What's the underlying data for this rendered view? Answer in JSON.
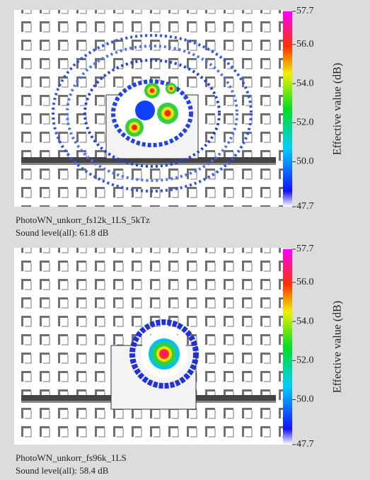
{
  "panels": [
    {
      "colorbar": {
        "label": "Effective value (dB)",
        "lim": [
          47.7,
          57.7
        ],
        "ticks": [
          57.7,
          {
            "value": 56,
            "label": "56.0"
          },
          {
            "value": 54,
            "label": "54.0"
          },
          {
            "value": 52,
            "label": "52.0"
          },
          {
            "value": 50,
            "label": "50.0"
          },
          47.7
        ]
      },
      "caption": [
        "PhotoWN_unkorr_fs12k_1LS_5kTz",
        "Sound level(all): 61.8 dB"
      ]
    },
    {
      "colorbar": {
        "label": "Effective value (dB)",
        "lim": [
          47.7,
          57.7
        ],
        "ticks": [
          57.7,
          {
            "value": 56,
            "label": "56.0"
          },
          {
            "value": 54,
            "label": "54.0"
          },
          {
            "value": 52,
            "label": "52.0"
          },
          {
            "value": 50,
            "label": "50.0"
          },
          47.7
        ]
      },
      "caption": [
        "PhotoWN_unkorr_fs96k_1LS",
        "Sound level(all): 58.4 dB"
      ]
    }
  ]
}
